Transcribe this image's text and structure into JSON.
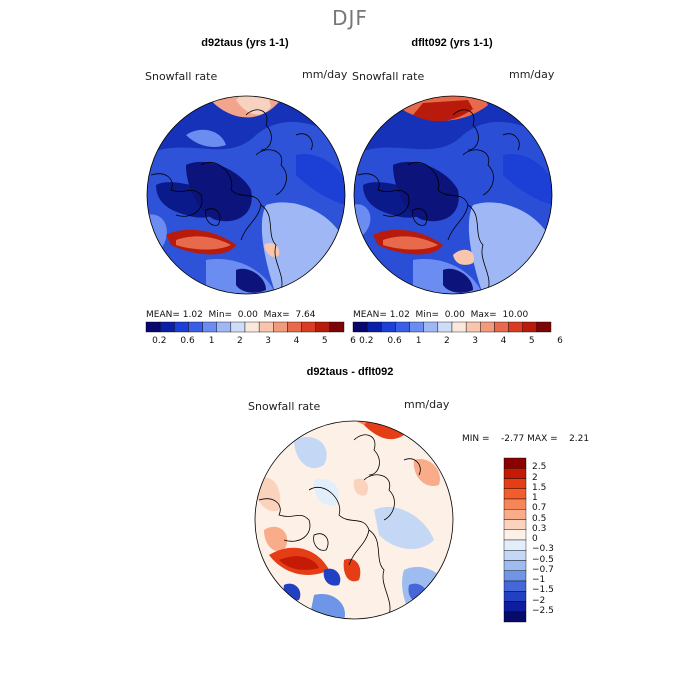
{
  "figure_title": "DJF",
  "panels": [
    {
      "title": "d92taus (yrs 1-1)",
      "variable": "Snowfall rate",
      "units": "mm/day",
      "mean_label": "MEAN=",
      "mean": "1.02",
      "min_label": "Min=",
      "min": "0.00",
      "max_label": "Max=",
      "max": "7.64"
    },
    {
      "title": "dflt092 (yrs 1-1)",
      "variable": "Snowfall rate",
      "units": "mm/day",
      "mean_label": "MEAN=",
      "mean": "1.02",
      "min_label": "Min=",
      "min": "0.00",
      "max_label": "Max=",
      "max": "10.00"
    }
  ],
  "colorbar_top": {
    "ticks": [
      "0.2",
      "0.6",
      "1",
      "2",
      "3",
      "4",
      "5",
      "6"
    ],
    "colors": [
      "#08086e",
      "#0a1fa8",
      "#1c3fd6",
      "#3a5fe6",
      "#6b8cf0",
      "#9fb8f5",
      "#cfdcf8",
      "#fbe8dc",
      "#f7c6ad",
      "#f19b7c",
      "#e76a4c",
      "#d93b23",
      "#b81b0b",
      "#7d0505"
    ]
  },
  "difference": {
    "title": "d92taus - dflt092",
    "variable": "Snowfall rate",
    "units": "mm/day",
    "stats": "MIN =    -2.77 MAX =    2.21",
    "ticks": [
      "2.5",
      "2",
      "1.5",
      "1",
      "0.7",
      "0.5",
      "0.3",
      "0",
      "−0.3",
      "−0.5",
      "−0.7",
      "−1",
      "−1.5",
      "−2",
      "−2.5"
    ],
    "colors": [
      "#8b0000",
      "#c41a06",
      "#e53d15",
      "#f25d2c",
      "#f6855a",
      "#f9ac8a",
      "#fbd3bd",
      "#fdf1e7",
      "#e3eefb",
      "#c4d8f6",
      "#9ebcf0",
      "#6e95e6",
      "#4468d9",
      "#2240c2",
      "#0d1d9e",
      "#050a6b"
    ]
  }
}
